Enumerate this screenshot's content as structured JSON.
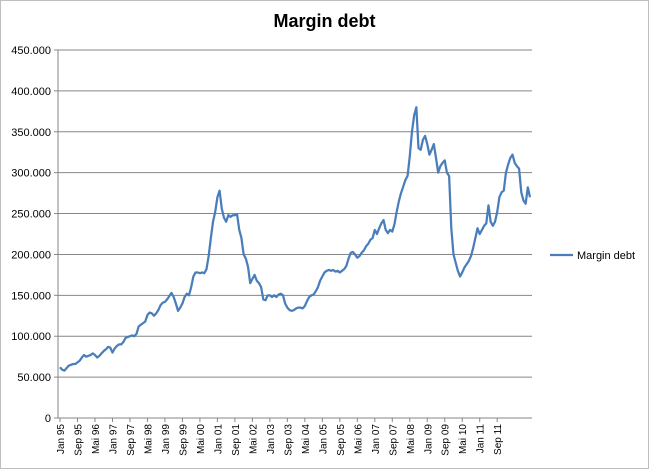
{
  "chart_data": {
    "type": "line",
    "title": "Margin debt",
    "xlabel": "",
    "ylabel": "",
    "ylim": [
      0,
      450000
    ],
    "y_ticks": [
      {
        "value": 0,
        "label": "0"
      },
      {
        "value": 50000,
        "label": "50.000"
      },
      {
        "value": 100000,
        "label": "100.000"
      },
      {
        "value": 150000,
        "label": "150.000"
      },
      {
        "value": 200000,
        "label": "200.000"
      },
      {
        "value": 250000,
        "label": "250.000"
      },
      {
        "value": 300000,
        "label": "300.000"
      },
      {
        "value": 350000,
        "label": "350.000"
      },
      {
        "value": 400000,
        "label": "400.000"
      },
      {
        "value": 450000,
        "label": "450.000"
      }
    ],
    "x_ticks": [
      "Jan 95",
      "Sep 95",
      "Mai 96",
      "Jan 97",
      "Sep 97",
      "Mai 98",
      "Jan 99",
      "Sep 99",
      "Mai 00",
      "Jan 01",
      "Sep 01",
      "Mai 02",
      "Jan 03",
      "Sep 03",
      "Mai 04",
      "Jan 05",
      "Sep 05",
      "Mai 06",
      "Jan 07",
      "Sep 07",
      "Mai 08",
      "Jan 09",
      "Sep 09",
      "Mai 10",
      "Jan 11",
      "Sep 11"
    ],
    "grid": "horizontal",
    "legend": "right",
    "colors": {
      "line": "#4a7ebb",
      "grid": "#868686",
      "axis": "#868686"
    },
    "series": [
      {
        "name": "Margin debt",
        "x_start": "Jan 95",
        "x_end": "Dec 11",
        "frequency": "monthly",
        "values": [
          62000,
          59000,
          58000,
          61000,
          64000,
          65000,
          66000,
          66000,
          68000,
          70000,
          74000,
          77000,
          75000,
          76000,
          77000,
          79000,
          77000,
          74000,
          76000,
          79000,
          82000,
          84000,
          87000,
          86000,
          80000,
          85000,
          88000,
          90000,
          90000,
          93000,
          98000,
          99000,
          100000,
          101000,
          100000,
          103000,
          112000,
          114000,
          116000,
          118000,
          126000,
          129000,
          128000,
          125000,
          128000,
          132000,
          138000,
          141000,
          142000,
          145000,
          149000,
          153000,
          148000,
          140000,
          131000,
          135000,
          140000,
          148000,
          152000,
          150000,
          160000,
          173000,
          178000,
          178000,
          177000,
          178000,
          177000,
          182000,
          198000,
          220000,
          240000,
          252000,
          270000,
          278000,
          256000,
          245000,
          240000,
          248000,
          246000,
          248000,
          248000,
          249000,
          230000,
          220000,
          200000,
          195000,
          185000,
          165000,
          170000,
          175000,
          168000,
          165000,
          160000,
          145000,
          144000,
          150000,
          150000,
          148000,
          150000,
          148000,
          151000,
          152000,
          150000,
          140000,
          135000,
          132000,
          131000,
          132000,
          134000,
          135000,
          135000,
          134000,
          137000,
          143000,
          148000,
          150000,
          151000,
          155000,
          160000,
          168000,
          173000,
          178000,
          180000,
          181000,
          180000,
          181000,
          179000,
          180000,
          178000,
          180000,
          182000,
          186000,
          195000,
          202000,
          203000,
          200000,
          196000,
          198000,
          202000,
          205000,
          210000,
          213000,
          218000,
          220000,
          230000,
          225000,
          232000,
          238000,
          242000,
          230000,
          226000,
          230000,
          228000,
          237000,
          252000,
          265000,
          275000,
          283000,
          291000,
          296000,
          320000,
          350000,
          370000,
          380000,
          330000,
          328000,
          340000,
          345000,
          335000,
          322000,
          328000,
          335000,
          318000,
          300000,
          308000,
          312000,
          315000,
          300000,
          296000,
          232000,
          200000,
          190000,
          180000,
          173000,
          178000,
          184000,
          188000,
          192000,
          198000,
          208000,
          220000,
          232000,
          225000,
          230000,
          235000,
          238000,
          260000,
          240000,
          235000,
          240000,
          252000,
          270000,
          276000,
          278000,
          300000,
          310000,
          318000,
          322000,
          312000,
          308000,
          305000,
          276000,
          266000,
          262000,
          282000,
          270000
        ]
      }
    ]
  }
}
